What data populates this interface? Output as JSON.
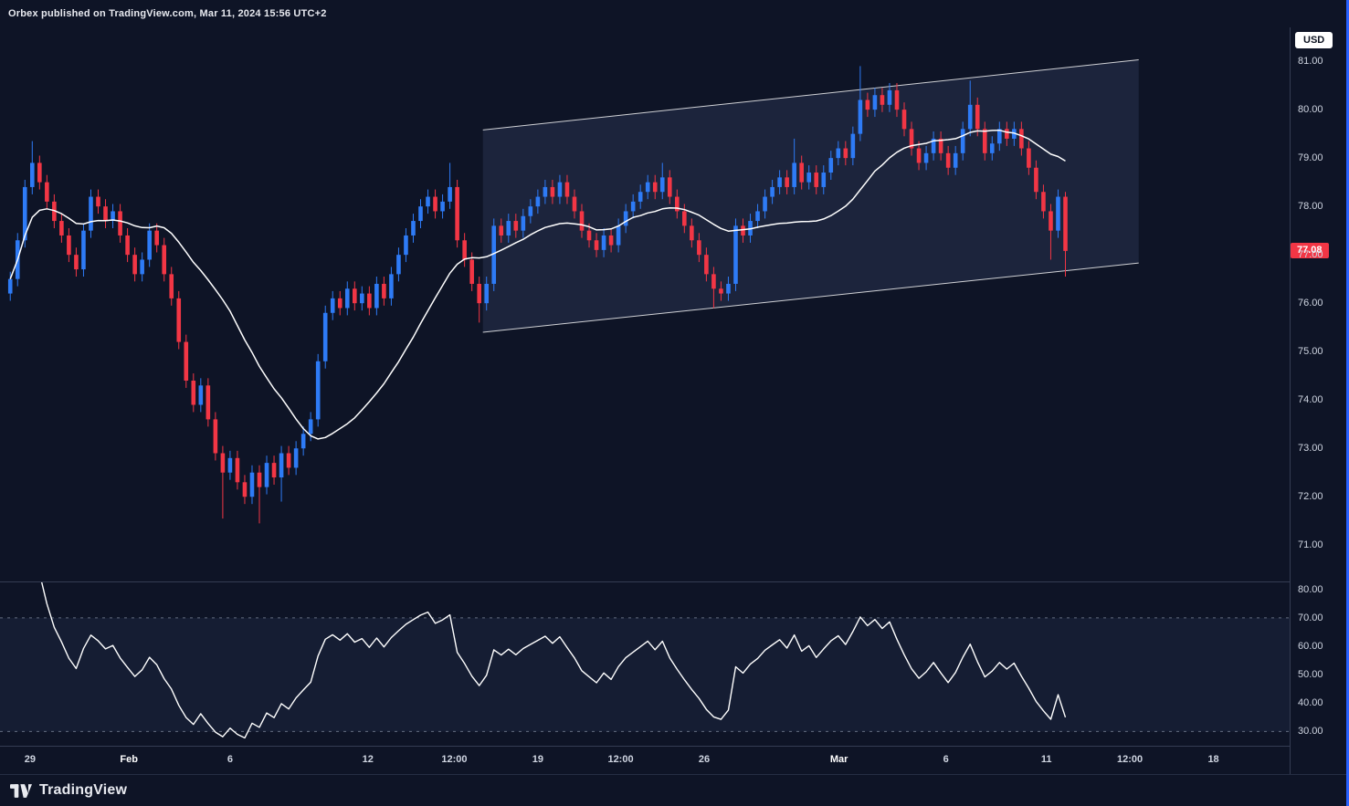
{
  "header": {
    "attribution": "Orbex published on TradingView.com, Mar 11, 2024 15:56 UTC+2"
  },
  "axis": {
    "currency_badge": "USD",
    "last_price_label": "77.08"
  },
  "footer": {
    "brand": "TradingView"
  },
  "colors": {
    "background": "#0E1426",
    "up_candle": "#2E7BF6",
    "down_candle": "#F23645",
    "ma_line": "#FFFFFF",
    "rsi_line": "#FFFFFF",
    "last_price_bg": "#F23645",
    "axis_text": "#CFD5E1",
    "accent_blue": "#2962FF",
    "channel_stroke": "rgba(255,255,255,0.8)",
    "channel_fill": "rgba(160,185,255,0.10)"
  },
  "chart_data": {
    "type": "candlestick",
    "currency": "USD",
    "last_price": 77.08,
    "price_range": [
      70.25,
      81.7
    ],
    "price_ticks": [
      81,
      80,
      79,
      78,
      77,
      76,
      75,
      74,
      73,
      72,
      71
    ],
    "n_slots": 176,
    "candles": {
      "first_open": 76.2,
      "default_wick": 0.15,
      "close": [
        76.5,
        77.3,
        78.4,
        78.9,
        78.5,
        78.1,
        77.7,
        77.4,
        77.0,
        76.7,
        77.5,
        78.2,
        78.0,
        77.7,
        77.9,
        77.4,
        77.0,
        76.6,
        76.9,
        77.5,
        77.2,
        76.6,
        76.1,
        75.2,
        74.4,
        73.9,
        74.3,
        73.6,
        72.9,
        72.5,
        72.8,
        72.3,
        72.0,
        72.5,
        72.2,
        72.7,
        72.4,
        72.9,
        72.6,
        73.0,
        73.3,
        73.6,
        74.8,
        75.8,
        76.1,
        75.9,
        76.3,
        76.0,
        76.2,
        75.9,
        76.4,
        76.1,
        76.6,
        77.0,
        77.4,
        77.7,
        78.0,
        78.2,
        77.9,
        78.1,
        78.4,
        77.3,
        76.9,
        76.4,
        76.0,
        76.4,
        77.6,
        77.4,
        77.7,
        77.5,
        77.8,
        78.0,
        78.2,
        78.4,
        78.2,
        78.5,
        78.2,
        77.9,
        77.5,
        77.3,
        77.1,
        77.4,
        77.2,
        77.6,
        77.9,
        78.1,
        78.3,
        78.5,
        78.3,
        78.6,
        78.2,
        77.9,
        77.6,
        77.3,
        77.0,
        76.6,
        76.3,
        76.2,
        76.4,
        77.6,
        77.4,
        77.7,
        77.9,
        78.2,
        78.4,
        78.6,
        78.4,
        78.9,
        78.5,
        78.7,
        78.4,
        78.7,
        79.0,
        79.2,
        79.0,
        79.5,
        80.2,
        80.0,
        80.3,
        80.1,
        80.4,
        80.0,
        79.6,
        79.2,
        78.9,
        79.1,
        79.4,
        79.1,
        78.8,
        79.1,
        79.6,
        80.1,
        79.6,
        79.1,
        79.3,
        79.6,
        79.4,
        79.6,
        79.2,
        78.8,
        78.3,
        77.9,
        77.5,
        78.2,
        77.08
      ],
      "wick_overrides": {
        "3": [
          0.45,
          0.15
        ],
        "29": [
          0.15,
          0.95
        ],
        "34": [
          0.15,
          0.75
        ],
        "37": [
          0.15,
          0.5
        ],
        "60": [
          0.5,
          0.15
        ],
        "64": [
          0.15,
          0.4
        ],
        "89": [
          0.3,
          0.15
        ],
        "96": [
          0.15,
          0.4
        ],
        "107": [
          0.5,
          0.15
        ],
        "116": [
          0.7,
          0.15
        ],
        "131": [
          0.5,
          0.15
        ],
        "142": [
          0.15,
          0.6
        ],
        "144": [
          0.1,
          0.53
        ]
      }
    },
    "overlays": {
      "sma": {
        "period": 20,
        "color": "#FFFFFF"
      },
      "channel": {
        "from_slot": 64.5,
        "to_slot": 154,
        "upper": [
          79.58,
          81.03
        ],
        "lower": [
          75.4,
          76.83
        ]
      }
    },
    "lower_pane": {
      "indicator": "RSI",
      "period": 14,
      "range": [
        25,
        82.5
      ],
      "ticks": [
        80,
        70,
        60,
        50,
        40,
        30
      ],
      "bands": [
        70,
        30
      ]
    },
    "time_ticks": [
      {
        "text": "29",
        "slot": 2.7
      },
      {
        "text": "Feb",
        "slot": 16.2,
        "major": true
      },
      {
        "text": "6",
        "slot": 30
      },
      {
        "text": "12",
        "slot": 48.8
      },
      {
        "text": "12:00",
        "slot": 60.6
      },
      {
        "text": "19",
        "slot": 72
      },
      {
        "text": "12:00",
        "slot": 83.3
      },
      {
        "text": "26",
        "slot": 94.7
      },
      {
        "text": "Mar",
        "slot": 113.1,
        "major": true
      },
      {
        "text": "6",
        "slot": 127.7
      },
      {
        "text": "11",
        "slot": 141.4
      },
      {
        "text": "12:00",
        "slot": 152.8
      },
      {
        "text": "18",
        "slot": 164.2
      }
    ]
  }
}
